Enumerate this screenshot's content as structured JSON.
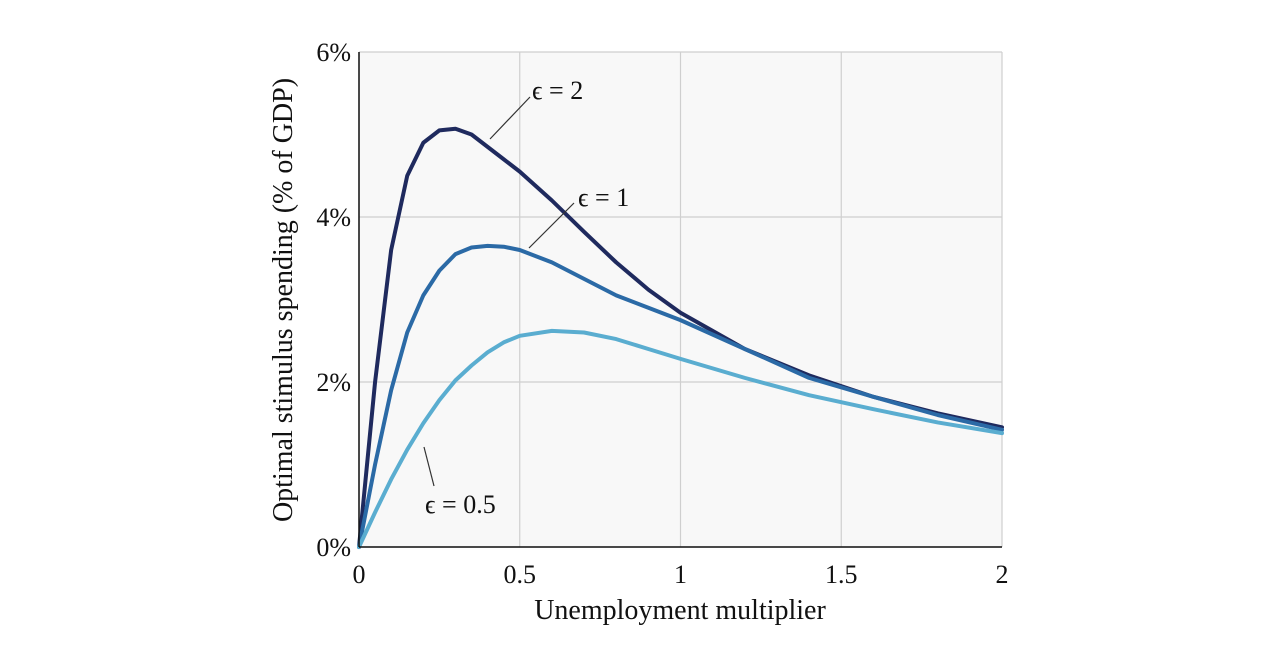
{
  "chart_data": {
    "type": "line",
    "x_label": "Unemployment multiplier",
    "y_label": "Optimal stimulus spending (% of GDP)",
    "x": [
      0,
      0.05,
      0.1,
      0.15,
      0.2,
      0.25,
      0.3,
      0.35,
      0.4,
      0.45,
      0.5,
      0.6,
      0.7,
      0.8,
      0.9,
      1,
      1.2,
      1.4,
      1.6,
      1.8,
      2
    ],
    "series": [
      {
        "name": "ϵ = 2",
        "color": "#1f2a5e",
        "values": [
          0,
          2.0,
          3.6,
          4.5,
          4.9,
          5.05,
          5.07,
          5.0,
          4.85,
          4.7,
          4.55,
          4.2,
          3.82,
          3.45,
          3.12,
          2.84,
          2.4,
          2.08,
          1.82,
          1.62,
          1.45
        ]
      },
      {
        "name": "ϵ = 1",
        "color": "#2b6aa6",
        "values": [
          0,
          1.0,
          1.9,
          2.6,
          3.05,
          3.35,
          3.55,
          3.63,
          3.65,
          3.64,
          3.6,
          3.45,
          3.25,
          3.05,
          2.9,
          2.75,
          2.4,
          2.05,
          1.82,
          1.6,
          1.42
        ]
      },
      {
        "name": "ϵ = 0.5",
        "color": "#5aadd0",
        "values": [
          0,
          0.42,
          0.82,
          1.18,
          1.5,
          1.78,
          2.02,
          2.2,
          2.36,
          2.48,
          2.56,
          2.62,
          2.6,
          2.52,
          2.4,
          2.28,
          2.05,
          1.84,
          1.67,
          1.51,
          1.38
        ]
      }
    ],
    "xlim": [
      0,
      2
    ],
    "xticks": [
      0,
      0.5,
      1,
      1.5,
      2
    ],
    "ylim": [
      0,
      6
    ],
    "yticks": [
      {
        "value": 0,
        "label": "0%"
      },
      {
        "value": 2,
        "label": "2%"
      },
      {
        "value": 4,
        "label": "4%"
      },
      {
        "value": 6,
        "label": "6%"
      }
    ],
    "grid": true
  }
}
